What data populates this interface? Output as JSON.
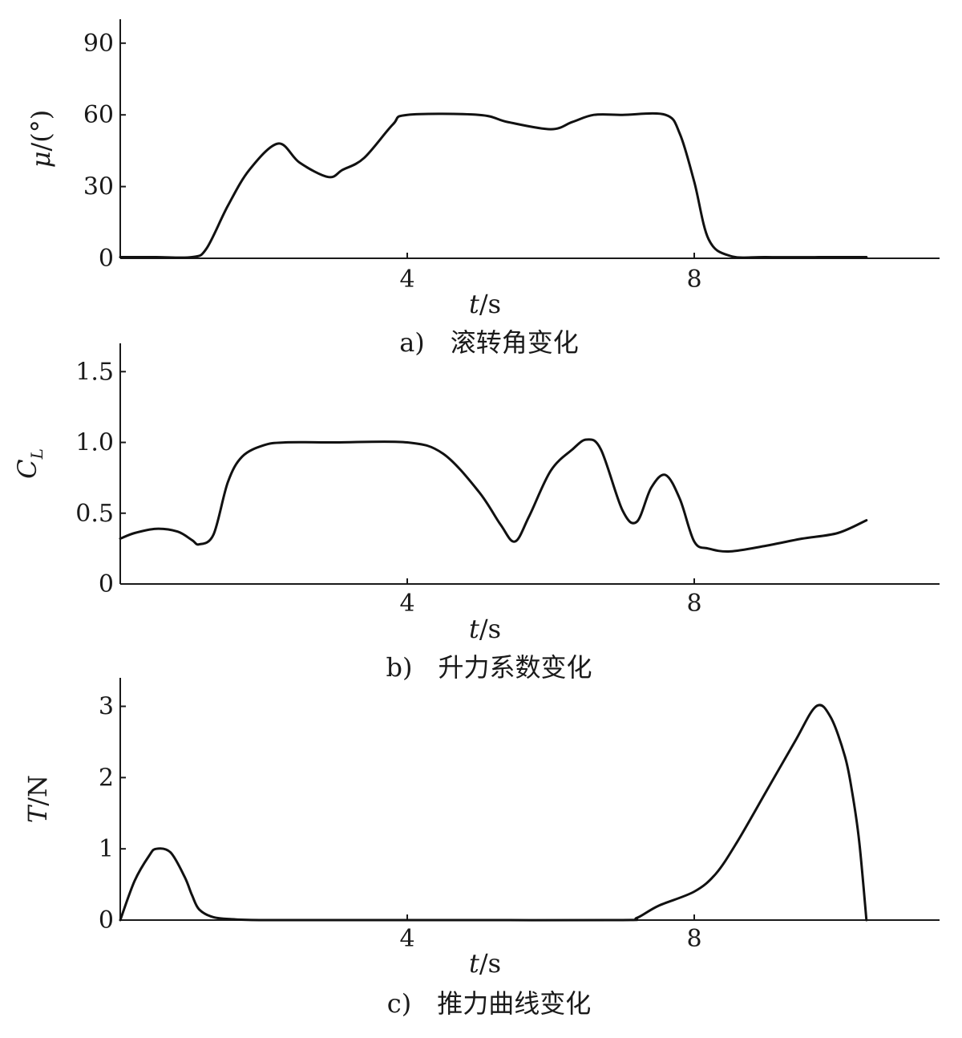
{
  "chart_data": [
    {
      "type": "line",
      "title": "",
      "caption": "a)　滚转角变化",
      "xlabel": "t/s",
      "ylabel": "μ/(°)",
      "xlim": [
        0,
        11.5
      ],
      "ylim": [
        0,
        100
      ],
      "xticks": [
        4,
        8
      ],
      "yticks": [
        0,
        30,
        60,
        90
      ],
      "ytick_labels": [
        "0",
        "30",
        "60",
        "90"
      ],
      "grid": false,
      "series": [
        {
          "x": [
            0,
            0.5,
            1.0,
            1.2,
            1.5,
            1.8,
            2.2,
            2.5,
            2.9,
            3.1,
            3.4,
            3.8,
            4.0,
            5.0,
            5.4,
            6.0,
            6.3,
            6.6,
            7.0,
            7.6,
            7.8,
            8.0,
            8.2,
            8.5,
            9.0,
            10.0,
            10.4
          ],
          "y": [
            0.5,
            0.5,
            0.5,
            4,
            22,
            37,
            48,
            40,
            34,
            37,
            42,
            56,
            60,
            60,
            57,
            54,
            57,
            60,
            60,
            60,
            52,
            32,
            8,
            1,
            0.5,
            0.5,
            0.5
          ]
        }
      ]
    },
    {
      "type": "line",
      "title": "",
      "caption": "b)　升力系数变化",
      "xlabel": "t/s",
      "ylabel": "C_L",
      "xlim": [
        0,
        11.5
      ],
      "ylim": [
        0,
        1.7
      ],
      "xticks": [
        4,
        8
      ],
      "yticks": [
        0,
        0.5,
        1.0,
        1.5
      ],
      "ytick_labels": [
        "0",
        "0.5",
        "1.0",
        "1.5"
      ],
      "grid": false,
      "series": [
        {
          "x": [
            0,
            0.2,
            0.5,
            0.8,
            1.0,
            1.1,
            1.3,
            1.5,
            1.7,
            2.0,
            2.3,
            3.0,
            4.0,
            4.5,
            5.0,
            5.3,
            5.5,
            5.7,
            6.0,
            6.3,
            6.5,
            6.7,
            7.0,
            7.2,
            7.4,
            7.6,
            7.8,
            8.0,
            8.2,
            8.5,
            9.0,
            9.5,
            10.0,
            10.4
          ],
          "y": [
            0.32,
            0.36,
            0.39,
            0.37,
            0.31,
            0.28,
            0.35,
            0.72,
            0.9,
            0.98,
            1.0,
            1.0,
            1.0,
            0.92,
            0.65,
            0.42,
            0.3,
            0.48,
            0.8,
            0.95,
            1.02,
            0.95,
            0.52,
            0.44,
            0.68,
            0.77,
            0.6,
            0.3,
            0.25,
            0.23,
            0.27,
            0.32,
            0.36,
            0.45
          ]
        }
      ]
    },
    {
      "type": "line",
      "title": "",
      "caption": "c)　推力曲线变化",
      "xlabel": "t/s",
      "ylabel": "T/N",
      "xlim": [
        0,
        11.5
      ],
      "ylim": [
        0,
        3.4
      ],
      "xticks": [
        4,
        8
      ],
      "yticks": [
        0,
        1,
        2,
        3
      ],
      "ytick_labels": [
        "0",
        "1",
        "2",
        "3"
      ],
      "grid": false,
      "series": [
        {
          "x": [
            0,
            0.2,
            0.4,
            0.5,
            0.7,
            0.9,
            1.0,
            1.1,
            1.3,
            1.6,
            2.0,
            3.0,
            5.0,
            7.0,
            7.2,
            7.5,
            8.0,
            8.3,
            8.6,
            9.0,
            9.4,
            9.7,
            9.9,
            10.1,
            10.2,
            10.3,
            10.4
          ],
          "y": [
            0,
            0.55,
            0.9,
            1.0,
            0.95,
            0.6,
            0.35,
            0.15,
            0.04,
            0.01,
            0.0,
            0.0,
            0.0,
            0.0,
            0.03,
            0.2,
            0.4,
            0.65,
            1.1,
            1.8,
            2.5,
            3.0,
            2.85,
            2.3,
            1.8,
            1.1,
            0.0
          ]
        }
      ]
    }
  ]
}
